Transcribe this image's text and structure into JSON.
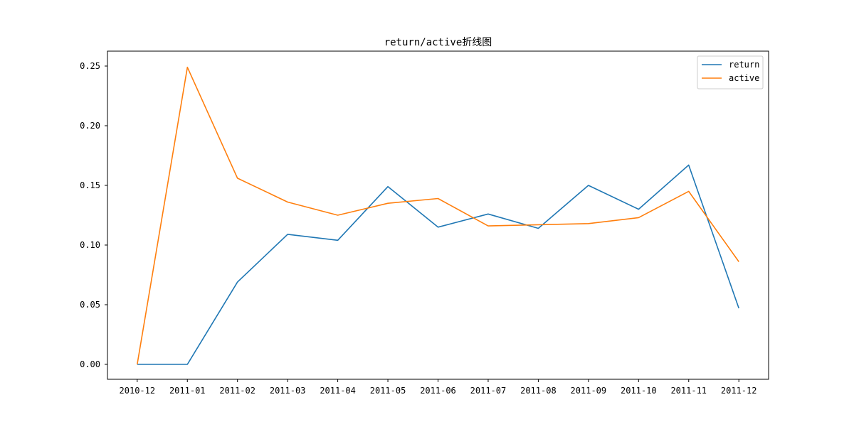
{
  "chart_data": {
    "type": "line",
    "title": "return/active折线图",
    "xlabel": "",
    "ylabel": "",
    "categories": [
      "2010-12",
      "2011-01",
      "2011-02",
      "2011-03",
      "2011-04",
      "2011-05",
      "2011-06",
      "2011-07",
      "2011-08",
      "2011-09",
      "2011-10",
      "2011-11",
      "2011-12"
    ],
    "series": [
      {
        "name": "return",
        "color": "#1f77b4",
        "values": [
          0.0,
          0.0,
          0.069,
          0.109,
          0.104,
          0.149,
          0.115,
          0.126,
          0.114,
          0.15,
          0.13,
          0.167,
          0.047
        ]
      },
      {
        "name": "active",
        "color": "#ff7f0e",
        "values": [
          0.0,
          0.249,
          0.156,
          0.136,
          0.125,
          0.135,
          0.139,
          0.116,
          0.117,
          0.118,
          0.123,
          0.145,
          0.086
        ]
      }
    ],
    "ylim": [
      -0.0125,
      0.2625
    ],
    "yticks": [
      0.0,
      0.05,
      0.1,
      0.15,
      0.2,
      0.25
    ],
    "ytick_labels": [
      "0.00",
      "0.05",
      "0.10",
      "0.15",
      "0.20",
      "0.25"
    ],
    "grid": false,
    "legend_position": "top-right"
  }
}
